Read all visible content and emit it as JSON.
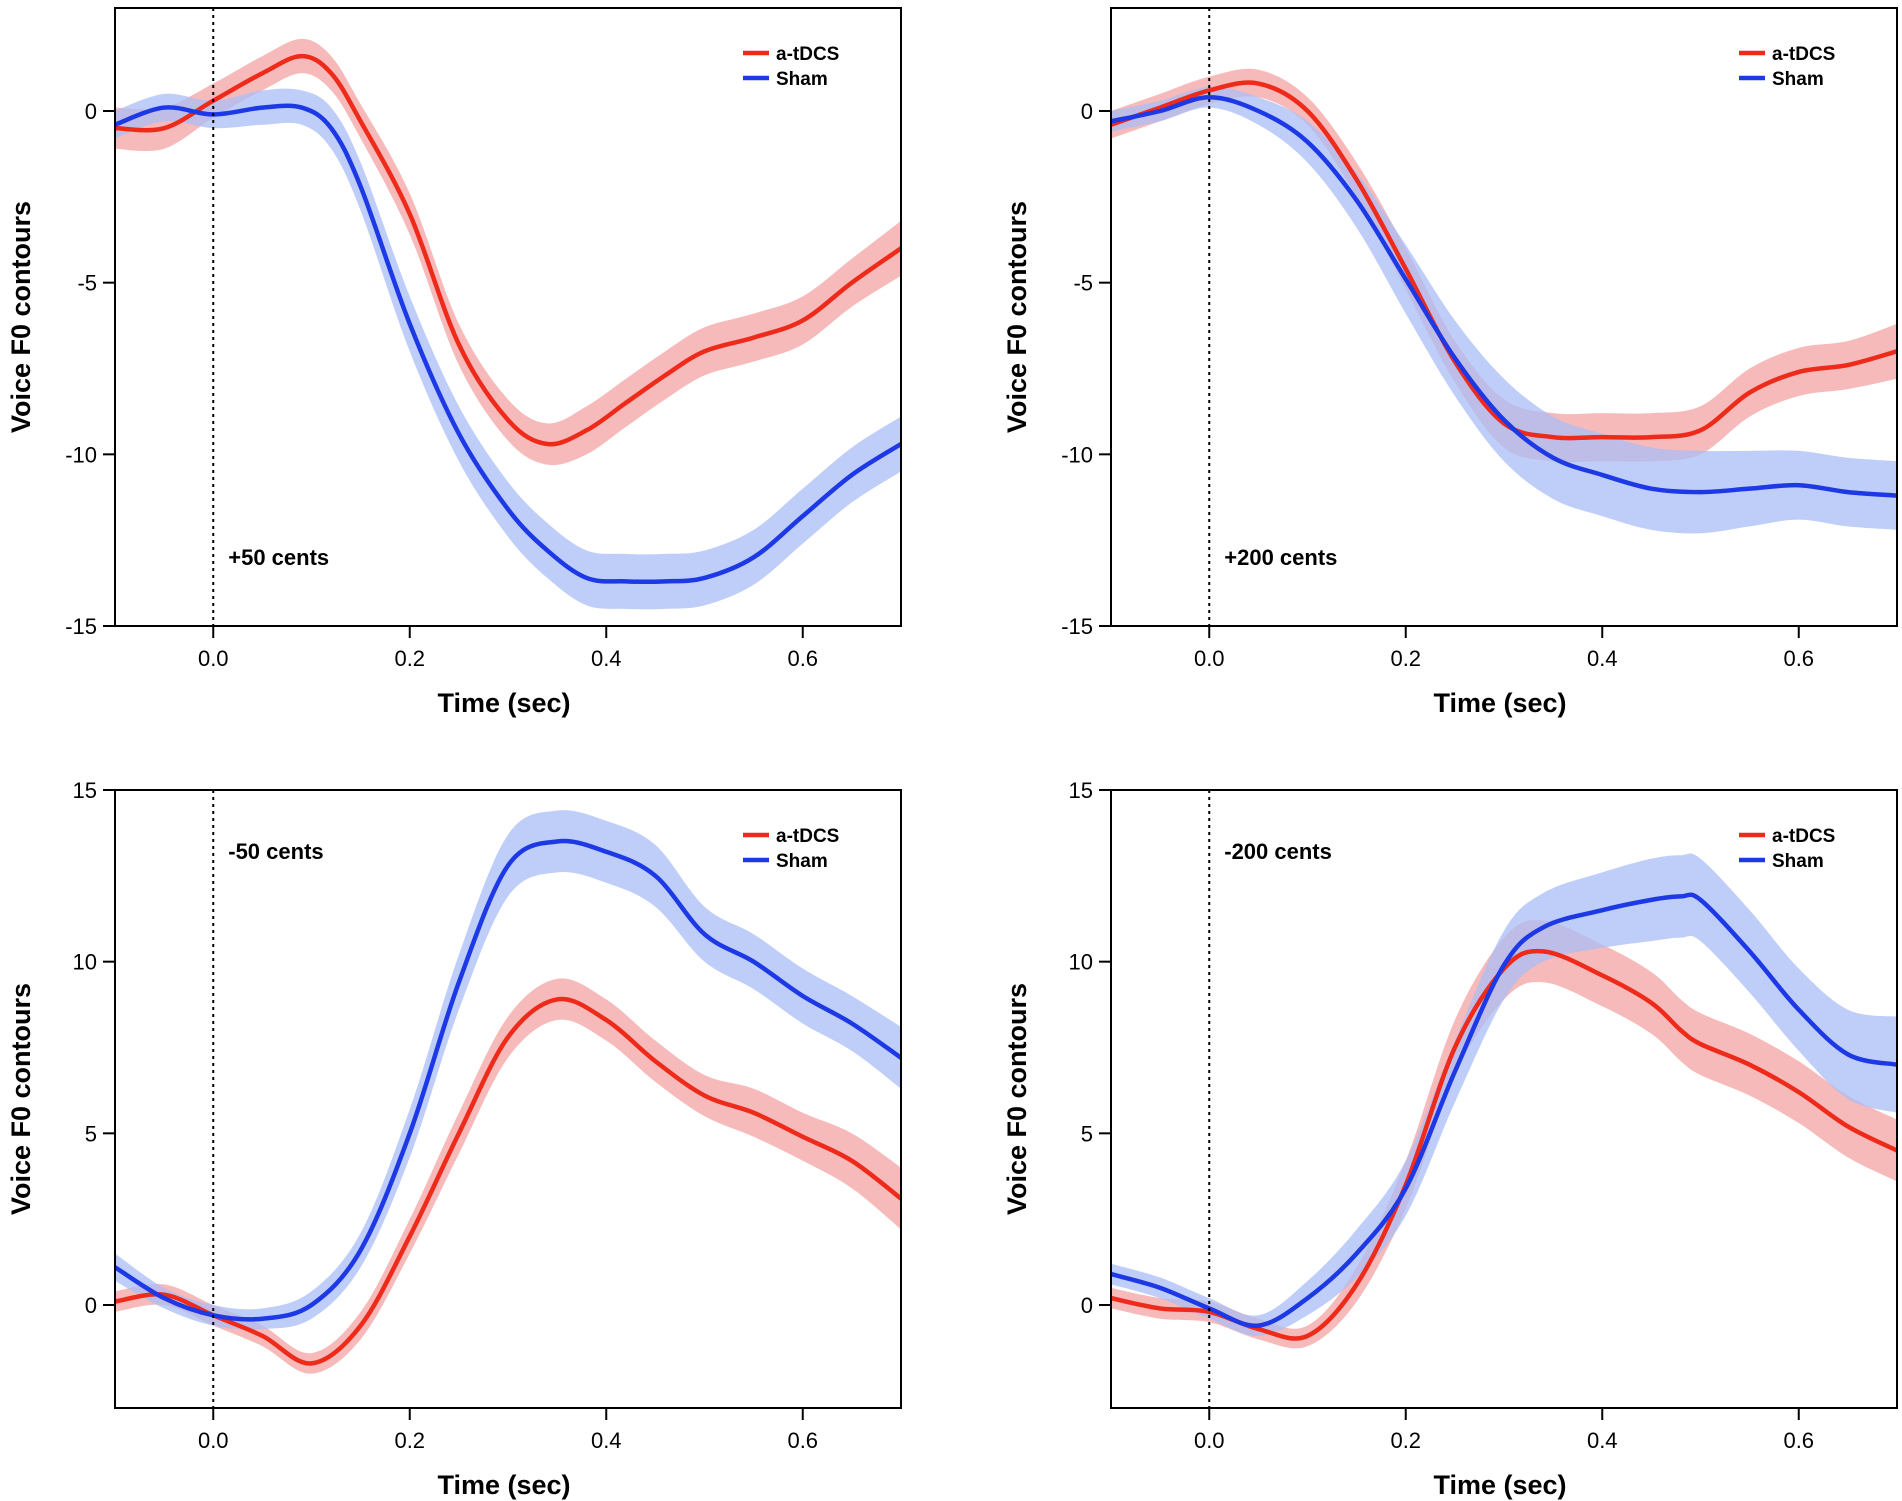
{
  "colors": {
    "atdcs_line": "#ee2a1b",
    "atdcs_band": "#f4a3a3",
    "sham_line": "#1d39e6",
    "sham_band": "#a9bdf6",
    "axis": "#000000"
  },
  "chart_data": [
    {
      "type": "line",
      "id": "top-left",
      "annotation": "+50 cents",
      "xlabel": "Time (sec)",
      "ylabel": "Voice F0 contours",
      "xlim": [
        -0.1,
        0.7
      ],
      "ylim": [
        -15,
        3
      ],
      "xticks": [
        0.0,
        0.2,
        0.4,
        0.6
      ],
      "xtick_labels": [
        "0.0",
        "0.2",
        "0.4",
        "0.6"
      ],
      "yticks": [
        0,
        -5,
        -10,
        -15
      ],
      "ytick_labels": [
        "0",
        "-5",
        "-10",
        "-15"
      ],
      "grid": false,
      "stimulus_onset": 0.0,
      "legend": {
        "position": "top-right",
        "entries": [
          "a-tDCS",
          "Sham"
        ]
      },
      "x": [
        -0.1,
        -0.05,
        0.0,
        0.05,
        0.09,
        0.12,
        0.15,
        0.2,
        0.25,
        0.3,
        0.34,
        0.38,
        0.42,
        0.46,
        0.5,
        0.55,
        0.6,
        0.65,
        0.7
      ],
      "series": [
        {
          "name": "a-tDCS",
          "values": [
            -0.5,
            -0.5,
            0.3,
            1.1,
            1.6,
            1.1,
            -0.3,
            -3.0,
            -6.8,
            -9.0,
            -9.7,
            -9.3,
            -8.5,
            -7.7,
            -7.0,
            -6.6,
            -6.1,
            -5.0,
            -4.0
          ],
          "error": [
            0.6,
            0.6,
            0.5,
            0.5,
            0.5,
            0.5,
            0.5,
            0.6,
            0.6,
            0.6,
            0.6,
            0.7,
            0.7,
            0.7,
            0.7,
            0.7,
            0.7,
            0.7,
            0.8
          ]
        },
        {
          "name": "Sham",
          "values": [
            -0.4,
            0.1,
            -0.1,
            0.1,
            0.1,
            -0.5,
            -2.2,
            -6.2,
            -9.4,
            -11.6,
            -12.8,
            -13.6,
            -13.7,
            -13.7,
            -13.6,
            -13.0,
            -11.8,
            -10.6,
            -9.7
          ],
          "error": [
            0.4,
            0.4,
            0.4,
            0.5,
            0.5,
            0.6,
            0.7,
            0.8,
            0.8,
            0.8,
            0.8,
            0.8,
            0.8,
            0.8,
            0.8,
            0.8,
            0.8,
            0.8,
            0.8
          ]
        }
      ]
    },
    {
      "type": "line",
      "id": "top-right",
      "annotation": "+200 cents",
      "xlabel": "Time (sec)",
      "ylabel": "Voice F0 contours",
      "xlim": [
        -0.1,
        0.7
      ],
      "ylim": [
        -15,
        3
      ],
      "xticks": [
        0.0,
        0.2,
        0.4,
        0.6
      ],
      "xtick_labels": [
        "0.0",
        "0.2",
        "0.4",
        "0.6"
      ],
      "yticks": [
        0,
        -5,
        -10,
        -15
      ],
      "ytick_labels": [
        "0",
        "-5",
        "-10",
        "-15"
      ],
      "grid": false,
      "stimulus_onset": 0.0,
      "legend": {
        "position": "top-right",
        "entries": [
          "a-tDCS",
          "Sham"
        ]
      },
      "x": [
        -0.1,
        -0.05,
        0.0,
        0.05,
        0.1,
        0.15,
        0.2,
        0.25,
        0.3,
        0.35,
        0.4,
        0.45,
        0.5,
        0.55,
        0.6,
        0.65,
        0.7
      ],
      "series": [
        {
          "name": "a-tDCS",
          "values": [
            -0.4,
            0.1,
            0.6,
            0.8,
            0.0,
            -2.0,
            -4.6,
            -7.3,
            -9.1,
            -9.5,
            -9.5,
            -9.5,
            -9.3,
            -8.2,
            -7.6,
            -7.4,
            -7.0
          ],
          "error": [
            0.4,
            0.4,
            0.4,
            0.4,
            0.4,
            0.5,
            0.6,
            0.6,
            0.7,
            0.7,
            0.7,
            0.7,
            0.7,
            0.7,
            0.7,
            0.7,
            0.8
          ]
        },
        {
          "name": "Sham",
          "values": [
            -0.3,
            0.0,
            0.4,
            0.0,
            -0.9,
            -2.6,
            -4.9,
            -7.2,
            -9.0,
            -10.1,
            -10.6,
            -11.0,
            -11.1,
            -11.0,
            -10.9,
            -11.1,
            -11.2
          ],
          "error": [
            0.3,
            0.3,
            0.3,
            0.4,
            0.6,
            0.8,
            1.0,
            1.1,
            1.2,
            1.2,
            1.2,
            1.2,
            1.2,
            1.1,
            1.0,
            1.0,
            1.0
          ]
        }
      ]
    },
    {
      "type": "line",
      "id": "bottom-left",
      "annotation": "-50 cents",
      "xlabel": "Time (sec)",
      "ylabel": "Voice F0 contours",
      "xlim": [
        -0.1,
        0.7
      ],
      "ylim": [
        -3,
        15
      ],
      "xticks": [
        0.0,
        0.2,
        0.4,
        0.6
      ],
      "xtick_labels": [
        "0.0",
        "0.2",
        "0.4",
        "0.6"
      ],
      "yticks": [
        0,
        5,
        10,
        15
      ],
      "ytick_labels": [
        "0",
        "5",
        "10",
        "15"
      ],
      "grid": false,
      "stimulus_onset": 0.0,
      "legend": {
        "position": "top-right",
        "entries": [
          "a-tDCS",
          "Sham"
        ]
      },
      "x": [
        -0.1,
        -0.05,
        0.0,
        0.05,
        0.1,
        0.15,
        0.2,
        0.25,
        0.3,
        0.35,
        0.4,
        0.45,
        0.5,
        0.55,
        0.6,
        0.65,
        0.7
      ],
      "series": [
        {
          "name": "a-tDCS",
          "values": [
            0.1,
            0.3,
            -0.3,
            -0.9,
            -1.7,
            -0.6,
            2.0,
            5.0,
            7.8,
            8.9,
            8.3,
            7.1,
            6.1,
            5.6,
            4.9,
            4.2,
            3.1
          ],
          "error": [
            0.3,
            0.3,
            0.3,
            0.3,
            0.3,
            0.4,
            0.5,
            0.6,
            0.6,
            0.6,
            0.6,
            0.6,
            0.6,
            0.7,
            0.7,
            0.8,
            0.9
          ]
        },
        {
          "name": "Sham",
          "values": [
            1.1,
            0.2,
            -0.3,
            -0.4,
            0.0,
            1.6,
            5.0,
            9.4,
            12.8,
            13.5,
            13.2,
            12.5,
            10.8,
            10.0,
            9.0,
            8.2,
            7.2
          ],
          "error": [
            0.4,
            0.3,
            0.3,
            0.3,
            0.4,
            0.5,
            0.7,
            0.8,
            0.9,
            0.9,
            0.9,
            0.9,
            0.8,
            0.8,
            0.8,
            0.8,
            0.9
          ]
        }
      ]
    },
    {
      "type": "line",
      "id": "bottom-right",
      "annotation": "-200 cents",
      "xlabel": "Time (sec)",
      "ylabel": "Voice F0 contours",
      "xlim": [
        -0.1,
        0.7
      ],
      "ylim": [
        -3,
        15
      ],
      "xticks": [
        0.0,
        0.2,
        0.4,
        0.6
      ],
      "xtick_labels": [
        "0.0",
        "0.2",
        "0.4",
        "0.6"
      ],
      "yticks": [
        0,
        5,
        10,
        15
      ],
      "ytick_labels": [
        "0",
        "5",
        "10",
        "15"
      ],
      "grid": false,
      "stimulus_onset": 0.0,
      "legend": {
        "position": "top-right",
        "entries": [
          "a-tDCS",
          "Sham"
        ]
      },
      "x": [
        -0.1,
        -0.05,
        0.0,
        0.05,
        0.1,
        0.15,
        0.2,
        0.25,
        0.3,
        0.34,
        0.4,
        0.45,
        0.48,
        0.5,
        0.55,
        0.6,
        0.65,
        0.7
      ],
      "series": [
        {
          "name": "a-tDCS",
          "values": [
            0.2,
            -0.1,
            -0.2,
            -0.7,
            -0.9,
            0.6,
            3.5,
            7.5,
            9.8,
            10.3,
            9.6,
            8.8,
            8.0,
            7.6,
            7.0,
            6.2,
            5.2,
            4.5
          ],
          "error": [
            0.3,
            0.3,
            0.3,
            0.3,
            0.3,
            0.5,
            0.7,
            0.8,
            0.9,
            0.9,
            0.9,
            0.9,
            0.9,
            0.9,
            0.9,
            0.9,
            0.9,
            0.9
          ]
        },
        {
          "name": "Sham",
          "values": [
            0.9,
            0.5,
            -0.1,
            -0.6,
            0.2,
            1.5,
            3.4,
            6.8,
            9.9,
            11.0,
            11.5,
            11.8,
            11.9,
            11.8,
            10.3,
            8.6,
            7.3,
            7.0
          ],
          "error": [
            0.3,
            0.3,
            0.3,
            0.3,
            0.5,
            0.7,
            0.8,
            0.9,
            1.0,
            1.0,
            1.1,
            1.2,
            1.2,
            1.2,
            1.2,
            1.2,
            1.3,
            1.4
          ]
        }
      ]
    }
  ]
}
